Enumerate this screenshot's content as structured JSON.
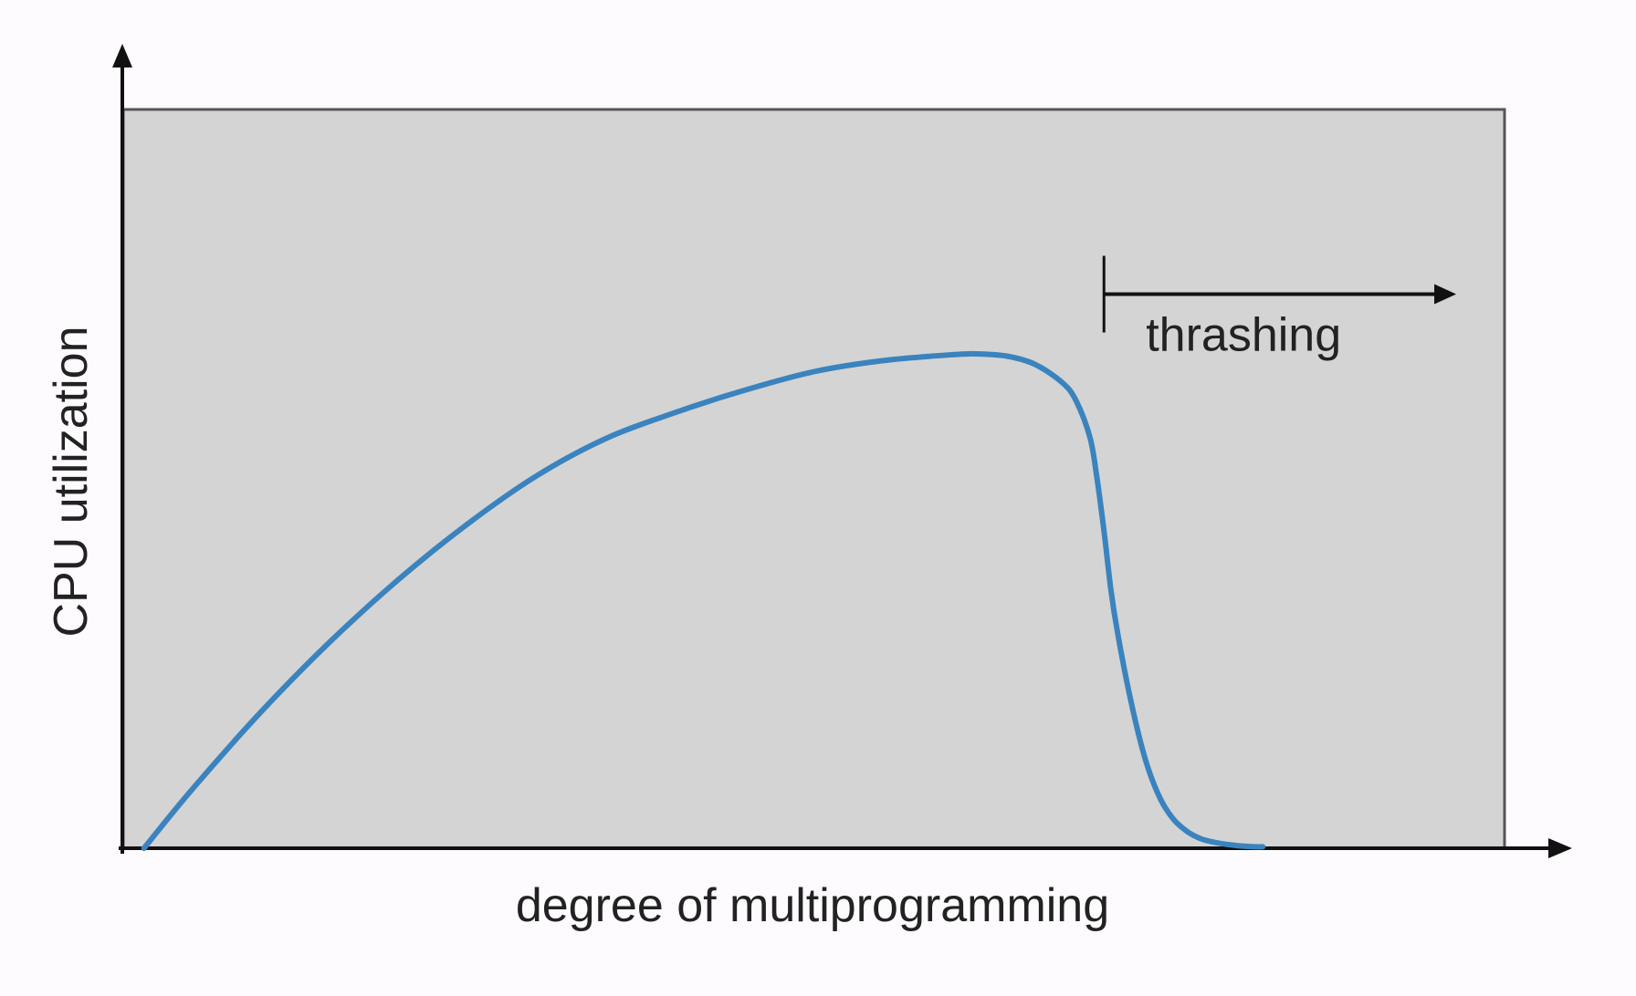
{
  "chart_data": {
    "type": "line",
    "title": "",
    "xlabel": "degree of multiprogramming",
    "ylabel": "CPU utilization",
    "xlim": [
      0,
      100
    ],
    "ylim": [
      0,
      100
    ],
    "grid": false,
    "ticks": false,
    "series": [
      {
        "x": [
          1.5,
          5,
          10,
          15,
          20,
          25,
          30,
          35,
          40,
          45,
          50,
          55,
          60,
          62,
          64,
          66,
          68,
          69,
          70,
          70.5,
          71,
          71.5,
          72,
          73,
          74,
          75,
          76,
          77,
          78,
          79,
          80,
          81,
          82,
          82.5
        ],
        "y": [
          0,
          8,
          18.5,
          28,
          36.5,
          44,
          50.5,
          55.5,
          59,
          62,
          64.5,
          66,
          66.8,
          66.9,
          66.6,
          65.5,
          63,
          60.5,
          55.5,
          50,
          43,
          35,
          29,
          19.5,
          12,
          7,
          4,
          2.3,
          1.3,
          0.8,
          0.5,
          0.3,
          0.2,
          0.2
        ],
        "color": "#3a83be"
      }
    ],
    "annotations": [
      {
        "text": "thrashing",
        "x_start": 71,
        "x_end": 96.5,
        "y": 75
      }
    ],
    "colors": {
      "plot_background": "#d4d4d4",
      "frame": "#555555",
      "axis": "#111111",
      "curve": "#3a83be",
      "text": "#222222",
      "page_background": "#fdfbfd"
    }
  }
}
